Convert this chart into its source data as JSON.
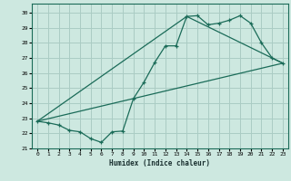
{
  "xlabel": "Humidex (Indice chaleur)",
  "bg_color": "#cde8e0",
  "grid_color": "#aaccc4",
  "line_color": "#1a6b58",
  "xlim": [
    -0.5,
    23.5
  ],
  "ylim": [
    21.0,
    30.6
  ],
  "xticks": [
    0,
    1,
    2,
    3,
    4,
    5,
    6,
    7,
    8,
    9,
    10,
    11,
    12,
    13,
    14,
    15,
    16,
    17,
    18,
    19,
    20,
    21,
    22,
    23
  ],
  "yticks": [
    21,
    22,
    23,
    24,
    25,
    26,
    27,
    28,
    29,
    30
  ],
  "line1_x": [
    0,
    1,
    2,
    3,
    4,
    5,
    6,
    7,
    8,
    9,
    10,
    11,
    12,
    13,
    14,
    15,
    16,
    17,
    18,
    19,
    20,
    21,
    22,
    23
  ],
  "line1_y": [
    22.8,
    22.7,
    22.55,
    22.2,
    22.1,
    21.65,
    21.4,
    22.1,
    22.15,
    24.3,
    25.4,
    26.7,
    27.8,
    27.8,
    29.75,
    29.8,
    29.2,
    29.3,
    29.5,
    29.8,
    29.3,
    28.0,
    27.0,
    26.65
  ],
  "line2_x": [
    0,
    23
  ],
  "line2_y": [
    22.8,
    26.65
  ],
  "line3_x": [
    0,
    14,
    23
  ],
  "line3_y": [
    22.8,
    29.75,
    26.65
  ]
}
